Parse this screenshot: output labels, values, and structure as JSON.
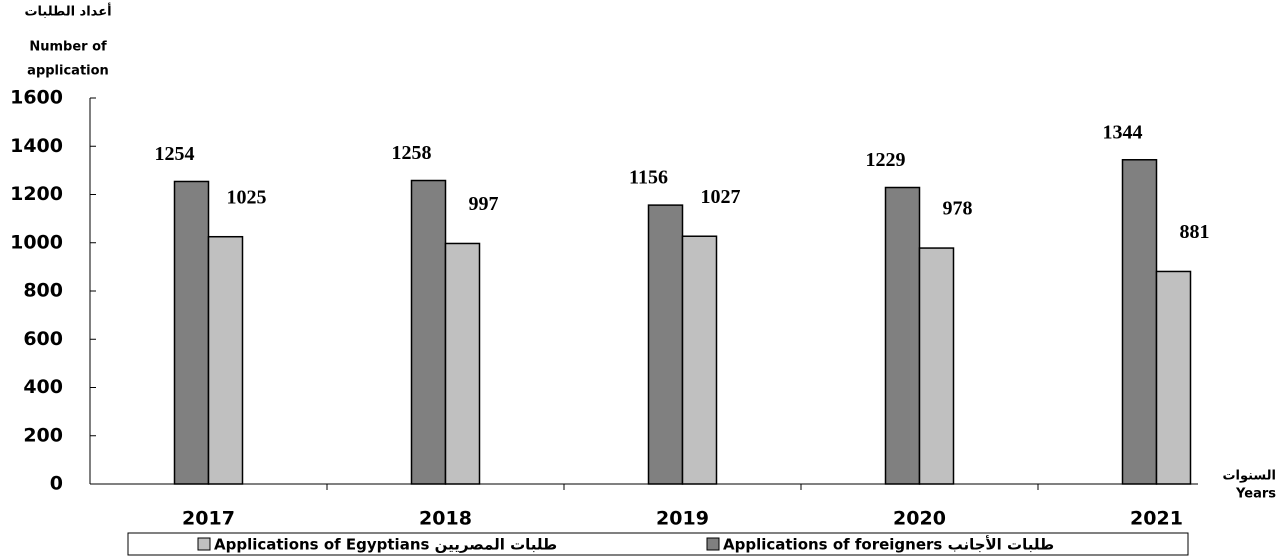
{
  "chart_data": {
    "type": "bar",
    "y_axis_label": [
      "أعداد الطلبات",
      "Number of",
      "application"
    ],
    "x_axis_label": [
      "السنوات",
      "Years"
    ],
    "categories": [
      "2017",
      "2018",
      "2019",
      "2020",
      "2021"
    ],
    "series": [
      {
        "name": "Applications of foreigners طلبات الأجانب",
        "color": "#808080",
        "values": [
          1254,
          1258,
          1156,
          1229,
          1344
        ]
      },
      {
        "name": "Applications of Egyptians طلبات المصريين",
        "color": "#c0c0c0",
        "values": [
          1025,
          997,
          1027,
          978,
          881
        ]
      }
    ],
    "ylim": [
      0,
      1600
    ],
    "yticks": [
      0,
      200,
      400,
      600,
      800,
      1000,
      1200,
      1400,
      1600
    ]
  }
}
